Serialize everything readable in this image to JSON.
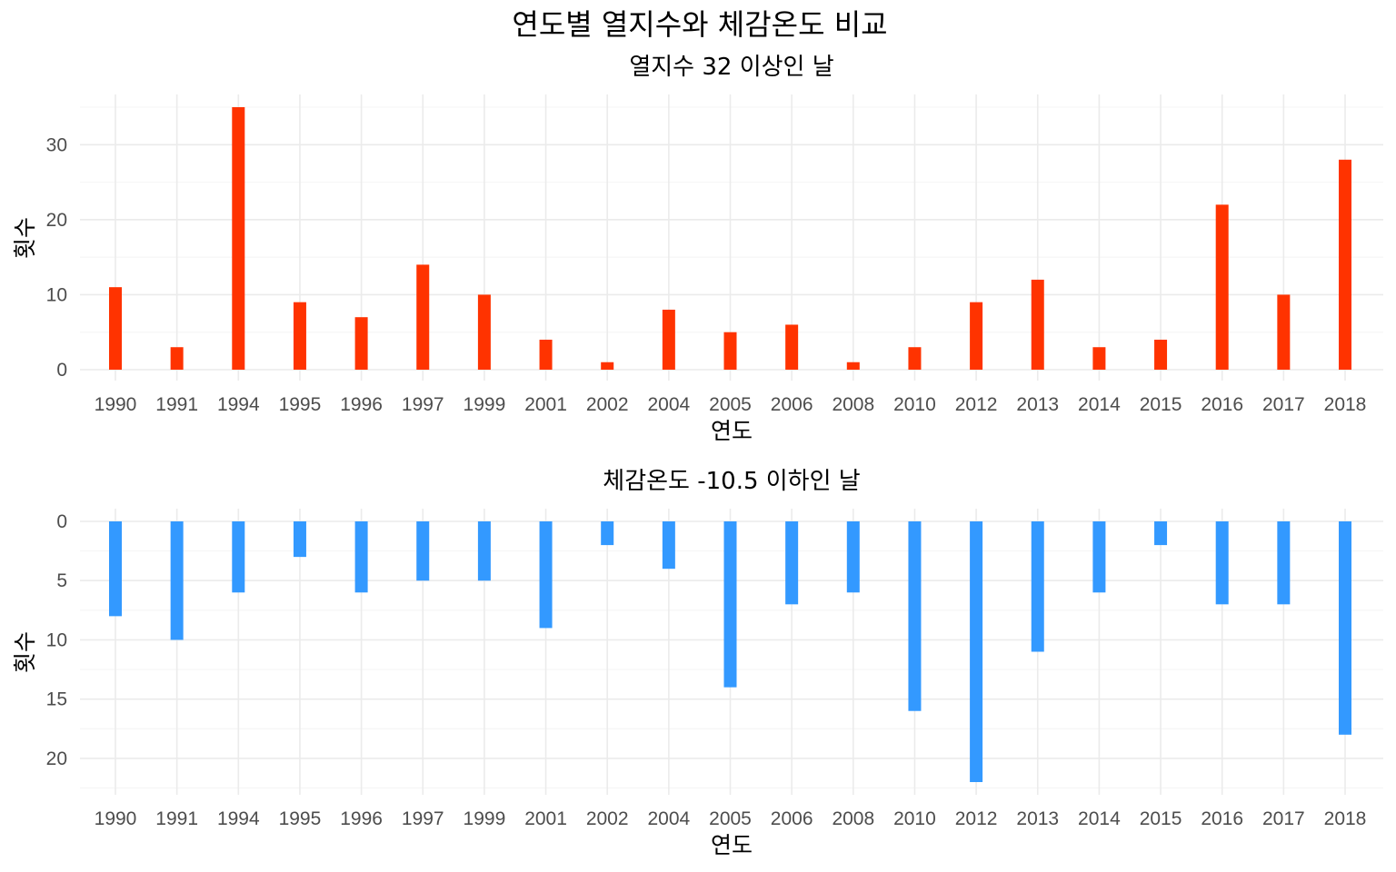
{
  "title": "연도별 열지수와 체감온도 비교",
  "colors": {
    "heat": "#FF3300",
    "chill": "#3399FF",
    "grid": "#EBEBEB",
    "tick_text": "#4D4D4D"
  },
  "chart_data": [
    {
      "type": "bar",
      "subtitle": "열지수 32 이상인 날",
      "xlabel": "연도",
      "ylabel": "횟수",
      "categories": [
        "1990",
        "1991",
        "1994",
        "1995",
        "1996",
        "1997",
        "1999",
        "2001",
        "2002",
        "2004",
        "2005",
        "2006",
        "2008",
        "2010",
        "2012",
        "2013",
        "2014",
        "2015",
        "2016",
        "2017",
        "2018"
      ],
      "values": [
        11,
        3,
        35,
        9,
        7,
        14,
        10,
        4,
        1,
        8,
        5,
        6,
        1,
        3,
        9,
        12,
        3,
        4,
        22,
        10,
        28
      ],
      "ylim": [
        0,
        35
      ],
      "yticks": [
        0,
        10,
        20,
        30
      ],
      "y_reversed": false,
      "color": "#FF3300",
      "grid": true
    },
    {
      "type": "bar",
      "subtitle": "체감온도 -10.5 이하인 날",
      "xlabel": "연도",
      "ylabel": "횟수",
      "categories": [
        "1990",
        "1991",
        "1994",
        "1995",
        "1996",
        "1997",
        "1999",
        "2001",
        "2002",
        "2004",
        "2005",
        "2006",
        "2008",
        "2010",
        "2012",
        "2013",
        "2014",
        "2015",
        "2016",
        "2017",
        "2018"
      ],
      "values": [
        8,
        10,
        6,
        3,
        6,
        5,
        5,
        9,
        2,
        4,
        14,
        7,
        6,
        16,
        22,
        11,
        6,
        2,
        7,
        7,
        18
      ],
      "ylim": [
        0,
        22
      ],
      "yticks": [
        0,
        5,
        10,
        15,
        20
      ],
      "y_reversed": true,
      "color": "#3399FF",
      "grid": true
    }
  ]
}
